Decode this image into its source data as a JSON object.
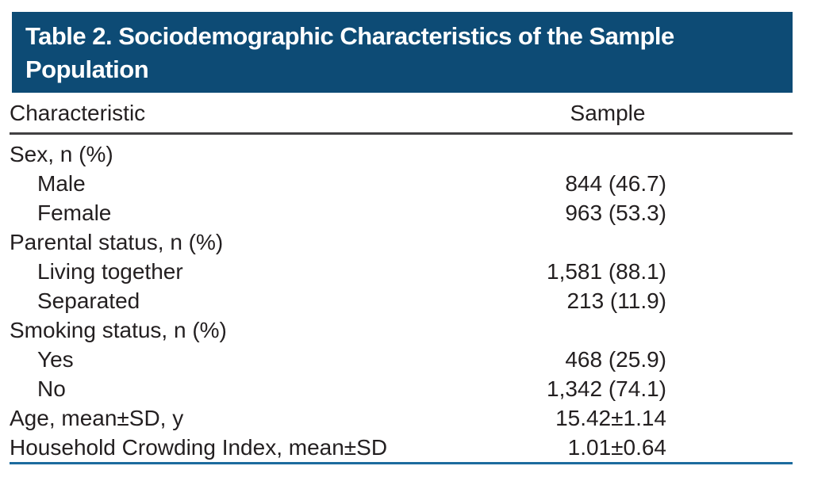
{
  "colors": {
    "banner_background": "#0d4b75",
    "banner_text": "#ffffff",
    "header_rule": "#414042",
    "bottom_rule": "#1c6b9e",
    "body_text": "#231f20"
  },
  "table": {
    "title": "Table 2. Sociodemographic Characteristics of the Sample Population",
    "columns": {
      "characteristic": "Characteristic",
      "sample": "Sample"
    },
    "rows": [
      {
        "label": "Sex, n (%)",
        "value": "",
        "indent": false
      },
      {
        "label": "Male",
        "value": "844 (46.7)",
        "indent": true
      },
      {
        "label": "Female",
        "value": "963 (53.3)",
        "indent": true
      },
      {
        "label": "Parental status, n (%)",
        "value": "",
        "indent": false
      },
      {
        "label": "Living together",
        "value": "1,581 (88.1)",
        "indent": true
      },
      {
        "label": "Separated",
        "value": "213 (11.9)",
        "indent": true
      },
      {
        "label": "Smoking status, n (%)",
        "value": "",
        "indent": false
      },
      {
        "label": "Yes",
        "value": "468 (25.9)",
        "indent": true
      },
      {
        "label": "No",
        "value": "1,342 (74.1)",
        "indent": true
      },
      {
        "label": "Age, mean±SD, y",
        "value": "15.42±1.14",
        "indent": false
      },
      {
        "label": "Household Crowding Index, mean±SD",
        "value": "1.01±0.64",
        "indent": false
      }
    ]
  }
}
